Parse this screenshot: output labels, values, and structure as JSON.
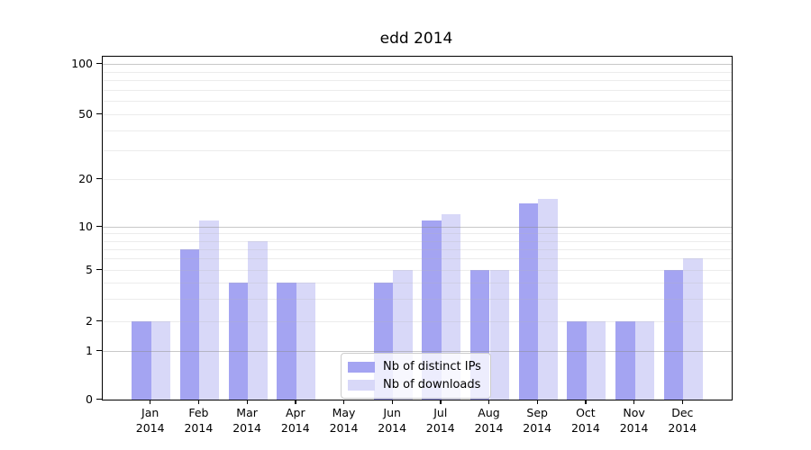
{
  "chart_data": {
    "type": "bar",
    "title": "edd 2014",
    "categories": [
      "Jan",
      "Feb",
      "Mar",
      "Apr",
      "May",
      "Jun",
      "Jul",
      "Aug",
      "Sep",
      "Oct",
      "Nov",
      "Dec"
    ],
    "category_year": "2014",
    "series": [
      {
        "name": "Nb of distinct IPs",
        "color": "#a4a4f2",
        "values": [
          2,
          7,
          4,
          4,
          0,
          4,
          11,
          5,
          14,
          2,
          2,
          5
        ]
      },
      {
        "name": "Nb of downloads",
        "color": "#d8d8f8",
        "values": [
          2,
          11,
          8,
          4,
          0,
          5,
          12,
          5,
          15,
          2,
          2,
          6
        ]
      }
    ],
    "yscale": "log-like",
    "yticks": [
      0,
      1,
      2,
      5,
      10,
      20,
      50,
      100
    ],
    "ylim": [
      0,
      110
    ],
    "grid": true,
    "legend_position": "lower center",
    "colors": {
      "axis": "#000000",
      "major_grid": "#c6c6c6",
      "minor_grid": "#ececec",
      "background": "#ffffff"
    }
  }
}
